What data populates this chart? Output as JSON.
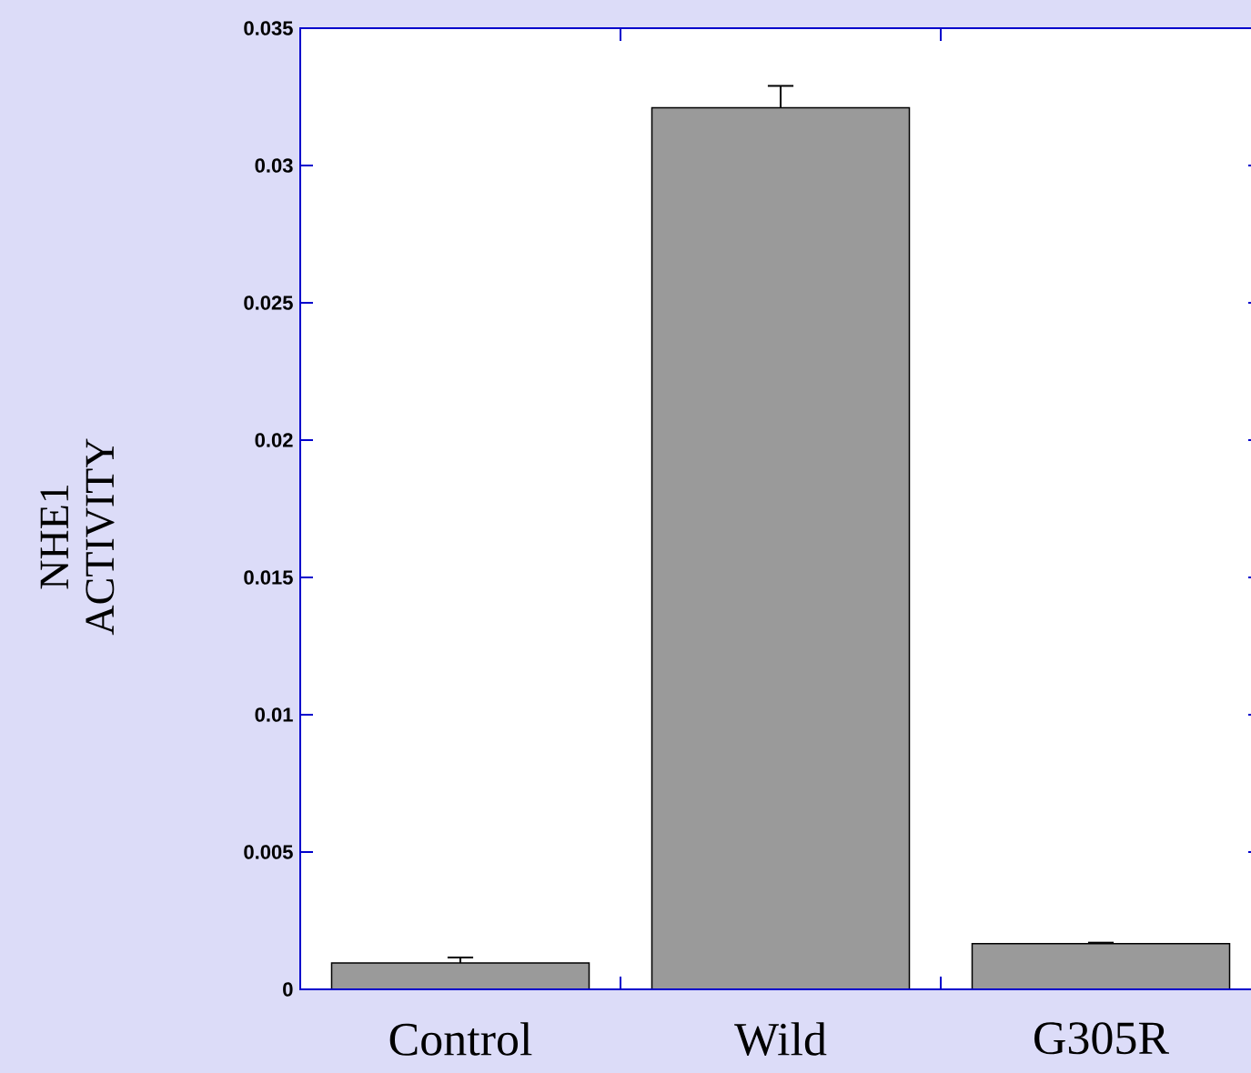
{
  "chart_data": {
    "type": "bar",
    "ylabel": "NHE1 ACTIVITY",
    "categories": [
      "Control",
      "Wild",
      "G305R"
    ],
    "values": [
      0.00096,
      0.0321,
      0.00166
    ],
    "errors": [
      [
        0.00096,
        0.00116
      ],
      [
        0.0321,
        0.0329
      ],
      [
        0.00166,
        0.0017
      ]
    ],
    "color": "#9a9a9a",
    "ylim": [
      0,
      0.035
    ],
    "yticks": [
      0,
      0.005,
      0.01,
      0.015,
      0.02,
      0.025,
      0.03,
      0.035
    ],
    "grid": false
  }
}
